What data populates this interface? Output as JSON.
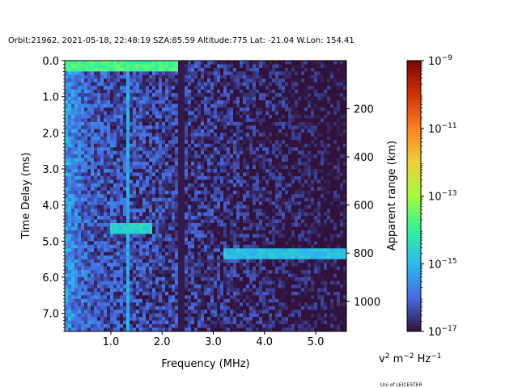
{
  "chart_data": {
    "type": "heatmap",
    "title": "Orbit:21962, 2021-05-18, 22:48:19 SZA:85.59 Altitude:775 Lat: -21.04 W.Lon: 154.41",
    "xlabel": "Frequency (MHz)",
    "ylabel": "Time Delay (ms)",
    "y2label": "Apparent range (km)",
    "xlim": [
      0.1,
      5.6
    ],
    "ylim": [
      7.5,
      0.0
    ],
    "y2lim": [
      1125,
      0
    ],
    "xticks": [
      1.0,
      2.0,
      3.0,
      4.0,
      5.0
    ],
    "xtick_labels": [
      "1.0",
      "2.0",
      "3.0",
      "4.0",
      "5.0"
    ],
    "yticks": [
      0.0,
      1.0,
      2.0,
      3.0,
      4.0,
      5.0,
      6.0,
      7.0
    ],
    "ytick_labels": [
      "0.0",
      "1.0",
      "2.0",
      "3.0",
      "4.0",
      "5.0",
      "6.0",
      "7.0"
    ],
    "y2ticks": [
      200,
      400,
      600,
      800,
      1000
    ],
    "y2tick_labels": [
      "200",
      "400",
      "600",
      "800",
      "1000"
    ],
    "colorbar": {
      "colormap": "turbo",
      "scale": "log",
      "range": [
        1e-17,
        1e-09
      ],
      "tick_exponents": [
        -17,
        -15,
        -13,
        -11,
        -9
      ],
      "tick_base": "10",
      "label_parts": [
        "v",
        "2",
        " m",
        "−2",
        " Hz",
        "−1"
      ]
    },
    "features": [
      {
        "kind": "bright_band",
        "time_ms": 0.15,
        "freq_range_mhz": [
          0.1,
          2.4
        ],
        "level_exp": -13.8
      },
      {
        "kind": "dark_column",
        "freq_mhz": 2.37,
        "level_exp": -16.9
      },
      {
        "kind": "echo_trace",
        "time_ms": 4.65,
        "freq_range_mhz": [
          1.0,
          1.8
        ],
        "level_exp": -14.6
      },
      {
        "kind": "echo_trace",
        "time_ms": 5.35,
        "freq_range_mhz": [
          3.2,
          5.6
        ],
        "level_exp": -14.9
      },
      {
        "kind": "bright_column",
        "freq_mhz": 1.33,
        "level_exp": -15.2
      }
    ],
    "credit": "Uni of LEICESTER"
  }
}
